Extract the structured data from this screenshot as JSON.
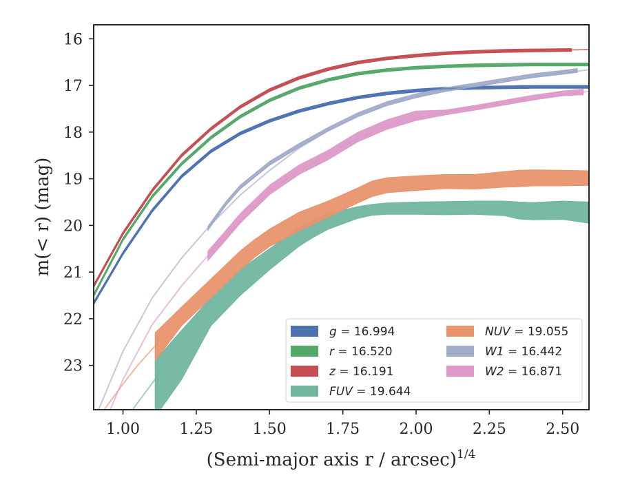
{
  "chart_data": {
    "type": "line",
    "xlabel": "(Semi-major axis r / arcsec)",
    "xlabel_sup": "1/4",
    "ylabel": "m(< r) (mag)",
    "xlim": [
      0.9,
      2.59
    ],
    "ylim": [
      23.95,
      15.7
    ],
    "y_inverted": true,
    "x_ticks": [
      1.0,
      1.25,
      1.5,
      1.75,
      2.0,
      2.25,
      2.5
    ],
    "x_tick_labels": [
      "1.00",
      "1.25",
      "1.50",
      "1.75",
      "2.00",
      "2.25",
      "2.50"
    ],
    "y_ticks": [
      16,
      17,
      18,
      19,
      20,
      21,
      22,
      23
    ],
    "y_tick_labels": [
      "16",
      "17",
      "18",
      "19",
      "20",
      "21",
      "22",
      "23"
    ],
    "legend_position": "lower-right",
    "series": [
      {
        "key": "g",
        "legend_var": "g",
        "legend_val": "= 16.994",
        "color": "#4c72b0",
        "model_x": [
          0.9,
          1.0,
          1.1,
          1.2,
          1.3,
          1.4,
          1.5,
          1.6,
          1.7,
          1.8,
          1.9,
          2.0,
          2.1,
          2.2,
          2.3,
          2.4,
          2.5,
          2.59
        ],
        "model_y": [
          21.67,
          20.6,
          19.68,
          18.95,
          18.41,
          18.03,
          17.76,
          17.55,
          17.39,
          17.26,
          17.17,
          17.11,
          17.07,
          17.05,
          17.04,
          17.03,
          17.03,
          17.03
        ],
        "data_x": [
          0.9,
          1.0,
          1.1,
          1.2,
          1.3,
          1.4,
          1.5,
          1.6,
          1.7,
          1.8,
          1.9,
          2.0,
          2.1,
          2.2,
          2.3,
          2.4,
          2.5,
          2.59
        ],
        "data_lo": [
          21.7,
          20.63,
          19.71,
          18.98,
          18.44,
          18.06,
          17.79,
          17.58,
          17.42,
          17.29,
          17.2,
          17.14,
          17.1,
          17.08,
          17.07,
          17.06,
          17.06,
          17.06
        ],
        "data_hi": [
          21.64,
          20.57,
          19.65,
          18.92,
          18.38,
          18.0,
          17.73,
          17.52,
          17.36,
          17.23,
          17.14,
          17.08,
          17.04,
          17.02,
          17.01,
          17.0,
          17.0,
          17.0
        ]
      },
      {
        "key": "r",
        "legend_var": "r",
        "legend_val": "= 16.520",
        "color": "#55a868",
        "model_x": [
          0.9,
          1.0,
          1.1,
          1.2,
          1.3,
          1.4,
          1.5,
          1.6,
          1.7,
          1.8,
          1.9,
          2.0,
          2.1,
          2.2,
          2.3,
          2.4,
          2.5,
          2.59
        ],
        "model_y": [
          21.5,
          20.3,
          19.38,
          18.68,
          18.12,
          17.67,
          17.32,
          17.06,
          16.88,
          16.75,
          16.67,
          16.62,
          16.59,
          16.57,
          16.56,
          16.55,
          16.55,
          16.55
        ],
        "data_x": [
          0.9,
          1.0,
          1.1,
          1.2,
          1.3,
          1.4,
          1.5,
          1.6,
          1.7,
          1.8,
          1.9,
          2.0,
          2.1,
          2.2,
          2.3,
          2.4,
          2.5,
          2.59
        ],
        "data_lo": [
          21.53,
          20.33,
          19.41,
          18.71,
          18.15,
          17.7,
          17.35,
          17.09,
          16.91,
          16.78,
          16.7,
          16.65,
          16.62,
          16.6,
          16.59,
          16.58,
          16.58,
          16.58
        ],
        "data_hi": [
          21.47,
          20.27,
          19.35,
          18.65,
          18.09,
          17.64,
          17.29,
          17.03,
          16.85,
          16.72,
          16.64,
          16.59,
          16.56,
          16.54,
          16.53,
          16.52,
          16.52,
          16.52
        ]
      },
      {
        "key": "z",
        "legend_var": "z",
        "legend_val": "= 16.191",
        "color": "#c44e52",
        "model_x": [
          0.9,
          1.0,
          1.1,
          1.2,
          1.3,
          1.4,
          1.5,
          1.6,
          1.7,
          1.8,
          1.9,
          2.0,
          2.1,
          2.2,
          2.3,
          2.4,
          2.5,
          2.59
        ],
        "model_y": [
          21.3,
          20.17,
          19.25,
          18.5,
          17.93,
          17.46,
          17.1,
          16.84,
          16.65,
          16.51,
          16.42,
          16.36,
          16.31,
          16.28,
          16.26,
          16.25,
          16.24,
          16.23
        ],
        "data_x": [
          0.9,
          1.0,
          1.1,
          1.2,
          1.3,
          1.4,
          1.5,
          1.6,
          1.7,
          1.8,
          1.9,
          2.0,
          2.1,
          2.2,
          2.3,
          2.4,
          2.53
        ],
        "data_lo": [
          21.33,
          20.2,
          19.28,
          18.53,
          17.96,
          17.49,
          17.13,
          16.87,
          16.68,
          16.54,
          16.45,
          16.39,
          16.34,
          16.31,
          16.29,
          16.28,
          16.27
        ],
        "data_hi": [
          21.27,
          20.14,
          19.22,
          18.47,
          17.9,
          17.43,
          17.07,
          16.81,
          16.62,
          16.48,
          16.39,
          16.33,
          16.28,
          16.25,
          16.23,
          16.22,
          16.21
        ]
      },
      {
        "key": "FUV",
        "legend_var": "FUV",
        "legend_val": "= 19.644",
        "color": "#72b6a1",
        "model_x": [
          0.9,
          0.95,
          1.0,
          1.05,
          1.1,
          1.15,
          1.2,
          1.25,
          1.3
        ],
        "model_y": [
          25.2,
          24.7,
          24.25,
          23.8,
          23.38,
          22.95,
          22.5,
          22.05,
          21.6
        ],
        "data_x": [
          1.11,
          1.2,
          1.3,
          1.4,
          1.5,
          1.6,
          1.65,
          1.7,
          1.8,
          1.85,
          1.9,
          2.0,
          2.1,
          2.2,
          2.3,
          2.35,
          2.4,
          2.5,
          2.59
        ],
        "data_lo": [
          24.1,
          23.3,
          22.15,
          21.5,
          20.95,
          20.45,
          20.25,
          20.08,
          19.85,
          19.78,
          19.76,
          19.76,
          19.77,
          19.76,
          19.79,
          19.86,
          19.88,
          19.87,
          19.95
        ],
        "data_hi": [
          22.9,
          22.25,
          21.55,
          20.95,
          20.5,
          20.05,
          19.88,
          19.75,
          19.6,
          19.55,
          19.52,
          19.5,
          19.49,
          19.48,
          19.48,
          19.5,
          19.51,
          19.48,
          19.5
        ]
      },
      {
        "key": "NUV",
        "legend_var": "NUV",
        "legend_val": "= 19.055",
        "color": "#e8956d",
        "model_x": [
          0.93,
          1.0,
          1.05,
          1.1,
          1.15,
          1.2
        ],
        "model_y": [
          24.0,
          23.4,
          23.0,
          22.65,
          22.3,
          21.95
        ],
        "data_x": [
          1.11,
          1.2,
          1.3,
          1.4,
          1.45,
          1.5,
          1.6,
          1.7,
          1.8,
          1.85,
          1.9,
          2.0,
          2.1,
          2.2,
          2.3,
          2.35,
          2.4,
          2.5,
          2.59
        ],
        "data_lo": [
          22.9,
          22.15,
          21.55,
          20.95,
          20.68,
          20.45,
          20.12,
          19.82,
          19.52,
          19.38,
          19.3,
          19.25,
          19.21,
          19.22,
          19.18,
          19.17,
          19.15,
          19.15,
          19.14
        ],
        "data_hi": [
          22.3,
          21.75,
          21.15,
          20.55,
          20.3,
          20.08,
          19.72,
          19.48,
          19.2,
          19.05,
          18.98,
          18.94,
          18.91,
          18.91,
          18.85,
          18.82,
          18.81,
          18.82,
          18.83
        ]
      },
      {
        "key": "W1",
        "legend_var": "W1",
        "legend_val": "= 16.442",
        "color": "#a1acc9",
        "model_x": [
          0.9,
          1.0,
          1.1,
          1.2,
          1.3,
          1.4,
          1.5,
          1.6,
          1.7,
          1.8,
          1.9,
          2.0,
          2.1,
          2.2,
          2.3,
          2.4,
          2.5,
          2.59
        ],
        "model_y": [
          24.2,
          22.7,
          21.55,
          20.7,
          19.98,
          19.35,
          18.82,
          18.35,
          17.97,
          17.67,
          17.43,
          17.26,
          17.12,
          17.02,
          16.92,
          16.82,
          16.74,
          16.66
        ],
        "data_x": [
          1.29,
          1.35,
          1.4,
          1.5,
          1.6,
          1.7,
          1.8,
          1.9,
          2.0,
          2.1,
          2.2,
          2.3,
          2.4,
          2.5,
          2.55
        ],
        "data_lo": [
          20.1,
          19.58,
          19.22,
          18.71,
          18.33,
          17.98,
          17.67,
          17.43,
          17.26,
          17.13,
          17.03,
          16.93,
          16.83,
          16.76,
          16.72
        ],
        "data_hi": [
          20.02,
          19.5,
          19.14,
          18.63,
          18.25,
          17.9,
          17.59,
          17.35,
          17.18,
          17.05,
          16.95,
          16.85,
          16.75,
          16.68,
          16.64
        ]
      },
      {
        "key": "W2",
        "legend_var": "W2",
        "legend_val": "= 16.871",
        "color": "#dd9ac8",
        "model_x": [
          0.9,
          1.0,
          1.1,
          1.2,
          1.3,
          1.4,
          1.5,
          1.6,
          1.7,
          1.8,
          1.9,
          2.0,
          2.1,
          2.2,
          2.3,
          2.4,
          2.5,
          2.59
        ],
        "model_y": [
          24.8,
          23.3,
          22.12,
          21.3,
          20.57,
          19.92,
          19.26,
          18.83,
          18.45,
          18.14,
          17.87,
          17.7,
          17.58,
          17.47,
          17.37,
          17.27,
          17.19,
          17.13
        ],
        "data_x": [
          1.29,
          1.35,
          1.4,
          1.5,
          1.6,
          1.7,
          1.8,
          1.9,
          2.0,
          2.1,
          2.2,
          2.3,
          2.4,
          2.5,
          2.57
        ],
        "data_lo": [
          20.75,
          20.32,
          19.95,
          19.34,
          18.91,
          18.59,
          18.21,
          17.94,
          17.75,
          17.63,
          17.53,
          17.42,
          17.31,
          17.22,
          17.2
        ],
        "data_hi": [
          20.55,
          20.12,
          19.75,
          19.14,
          18.71,
          18.39,
          18.01,
          17.74,
          17.55,
          17.53,
          17.43,
          17.32,
          17.21,
          17.12,
          17.08
        ]
      }
    ],
    "legend_columns": [
      [
        "g",
        "r",
        "z",
        "FUV"
      ],
      [
        "NUV",
        "W1",
        "W2"
      ]
    ]
  }
}
